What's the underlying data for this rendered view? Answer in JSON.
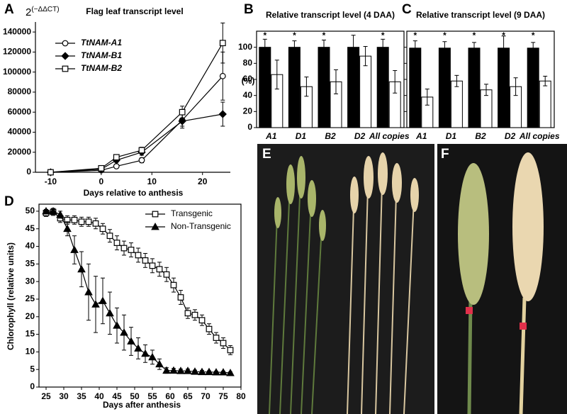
{
  "chart_data": [
    {
      "type": "line",
      "letter": "A",
      "title": "Flag leaf transcript level",
      "ylabel_base": "2",
      "ylabel_exponent": "(−ΔΔCT)",
      "xlabel": "Days relative to anthesis",
      "x": [
        -10,
        0,
        3,
        8,
        16,
        24
      ],
      "xlim": [
        -13,
        25.5
      ],
      "xticks": [
        -10,
        0,
        10,
        20
      ],
      "ylim": [
        0,
        150000
      ],
      "yticks": [
        0,
        20000,
        40000,
        60000,
        80000,
        100000,
        120000,
        140000
      ],
      "legend": "upper left",
      "series": [
        {
          "name": "TtNAM-A1",
          "color": "#000000",
          "marker": "circle",
          "fill": "#ffffff",
          "values": [
            0,
            2000,
            6000,
            12000,
            52000,
            96000
          ],
          "errors": [
            500,
            800,
            1500,
            2500,
            6000,
            24000
          ]
        },
        {
          "name": "TtNAM-B1",
          "color": "#000000",
          "marker": "diamond",
          "fill": "#000000",
          "values": [
            0,
            3000,
            12000,
            20000,
            51000,
            58000
          ],
          "errors": [
            500,
            800,
            2000,
            3000,
            7000,
            12000
          ]
        },
        {
          "name": "TtNAM-B2",
          "color": "#000000",
          "marker": "square",
          "fill": "#ffffff",
          "values": [
            0,
            4000,
            15000,
            22000,
            60000,
            129000
          ],
          "errors": [
            500,
            1000,
            2000,
            3000,
            6000,
            20000
          ]
        }
      ]
    },
    {
      "type": "bar",
      "letter": "B",
      "title": "Relative transcript level (4 DAA)",
      "ylabel": "(%)",
      "categories": [
        "A1",
        "D1",
        "B2",
        "D2",
        "All copies"
      ],
      "annotations": [
        "*",
        "*",
        "*",
        null,
        "*"
      ],
      "ylim": [
        0,
        120
      ],
      "yticks": [
        0,
        20,
        40,
        60,
        80,
        100
      ],
      "ytick_labels": true,
      "series": [
        {
          "color": "#000000",
          "values": [
            100,
            100,
            100,
            100,
            100
          ],
          "errors": [
            10,
            8,
            9,
            15,
            10
          ]
        },
        {
          "color": "#ffffff",
          "values": [
            66,
            51,
            57,
            89,
            57
          ],
          "errors": [
            18,
            12,
            15,
            12,
            14
          ]
        }
      ]
    },
    {
      "type": "bar",
      "letter": "C",
      "title": "Relative transcript level (9 DAA)",
      "categories": [
        "A1",
        "D1",
        "B2",
        "D2",
        "All copies"
      ],
      "annotations": [
        "*",
        "*",
        "*",
        "*",
        "*"
      ],
      "ylim": [
        0,
        120
      ],
      "yticks": [
        0,
        20,
        40,
        60,
        80,
        100
      ],
      "ytick_labels": false,
      "series": [
        {
          "color": "#000000",
          "values": [
            99,
            99,
            99,
            99,
            99
          ],
          "errors": [
            9,
            8,
            7,
            15,
            7
          ]
        },
        {
          "color": "#ffffff",
          "values": [
            38,
            58,
            47,
            51,
            58
          ],
          "errors": [
            10,
            7,
            7,
            11,
            6
          ]
        }
      ]
    },
    {
      "type": "line",
      "letter": "D",
      "ylabel": "Chlorophyll (relative units)",
      "xlabel": "Days after anthesis",
      "x": [
        25,
        27,
        29,
        31,
        33,
        35,
        37,
        39,
        41,
        43,
        45,
        47,
        49,
        51,
        53,
        55,
        57,
        59,
        61,
        63,
        65,
        67,
        69,
        71,
        73,
        75,
        77
      ],
      "xlim": [
        23,
        80
      ],
      "xticks": [
        25,
        30,
        35,
        40,
        45,
        50,
        55,
        60,
        65,
        70,
        75,
        80
      ],
      "ylim": [
        0,
        52
      ],
      "yticks": [
        0,
        5,
        10,
        15,
        20,
        25,
        30,
        35,
        40,
        45,
        50
      ],
      "legend": "upper right",
      "series": [
        {
          "name": "Transgenic",
          "color": "#000000",
          "marker": "square",
          "fill": "#ffffff",
          "values": [
            49.5,
            49.8,
            48,
            47.5,
            47.5,
            47,
            47,
            46.5,
            45,
            43,
            41,
            39.5,
            39,
            37.5,
            36,
            34.5,
            33.5,
            32,
            29,
            25.5,
            21,
            20.5,
            19,
            16.5,
            14,
            12.5,
            10.5
          ],
          "errors": [
            1,
            1,
            1.2,
            1.2,
            1.2,
            1.3,
            1.3,
            1.5,
            1.5,
            1.8,
            2,
            2,
            2,
            2,
            2,
            2,
            2,
            2,
            2,
            2,
            1.5,
            1.5,
            1.5,
            1.5,
            1.5,
            1.5,
            1.3
          ]
        },
        {
          "name": "Non-Transgenic",
          "color": "#000000",
          "marker": "triangle",
          "fill": "#000000",
          "values": [
            50,
            50,
            49,
            45,
            39,
            33.5,
            27,
            23.5,
            24.5,
            21,
            17.5,
            15.5,
            13,
            11,
            9.5,
            8.5,
            6.5,
            4.7,
            4.7,
            4.6,
            4.6,
            4.4,
            4.3,
            4.3,
            4.2,
            4.2,
            4.0
          ],
          "errors": [
            0.5,
            0.5,
            1,
            2,
            4,
            5,
            8,
            8,
            6.5,
            6,
            5,
            5,
            4,
            3,
            2.5,
            2,
            1.5,
            0.8,
            0.6,
            0.5,
            0.5,
            0.4,
            0.4,
            0.3,
            0.3,
            0.3,
            0.3
          ]
        }
      ]
    }
  ],
  "photos": [
    {
      "label": "E"
    },
    {
      "label": "F"
    }
  ]
}
